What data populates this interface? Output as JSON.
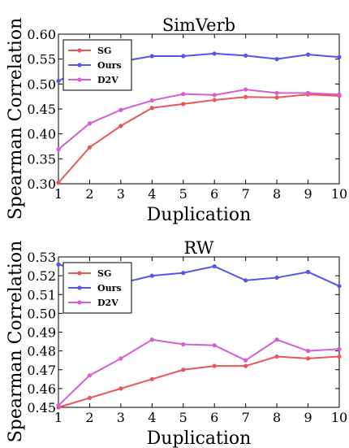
{
  "ylabel": "Spearman Correlation",
  "chart_data": [
    {
      "type": "line",
      "title": "SimVerb",
      "xlabel": "Duplication",
      "x": [
        1,
        2,
        3,
        4,
        5,
        6,
        7,
        8,
        9,
        10
      ],
      "xticks": [
        "1",
        "2",
        "3",
        "4",
        "5",
        "6",
        "7",
        "8",
        "9",
        "10"
      ],
      "ylim": [
        0.3,
        0.6
      ],
      "yticks": [
        "0.30",
        "0.35",
        "0.40",
        "0.45",
        "0.50",
        "0.55",
        "0.60"
      ],
      "legend_position": "top-left",
      "series": [
        {
          "name": "SG",
          "color": "#e8575c",
          "values": [
            0.302,
            0.373,
            0.416,
            0.452,
            0.46,
            0.468,
            0.474,
            0.473,
            0.479,
            0.476
          ]
        },
        {
          "name": "Ours",
          "color": "#5555ee",
          "values": [
            0.506,
            0.538,
            0.545,
            0.556,
            0.556,
            0.561,
            0.557,
            0.55,
            0.559,
            0.554
          ]
        },
        {
          "name": "D2V",
          "color": "#d45ed4",
          "values": [
            0.369,
            0.421,
            0.448,
            0.467,
            0.48,
            0.478,
            0.489,
            0.482,
            0.482,
            0.479
          ]
        }
      ]
    },
    {
      "type": "line",
      "title": "RW",
      "xlabel": "Duplication",
      "x": [
        1,
        2,
        3,
        4,
        5,
        6,
        7,
        8,
        9,
        10
      ],
      "xticks": [
        "1",
        "2",
        "3",
        "4",
        "5",
        "6",
        "7",
        "8",
        "9",
        "10"
      ],
      "ylim": [
        0.45,
        0.53
      ],
      "yticks": [
        "0.45",
        "0.46",
        "0.47",
        "0.48",
        "0.49",
        "0.50",
        "0.51",
        "0.52",
        "0.53"
      ],
      "legend_position": "top-left",
      "series": [
        {
          "name": "SG",
          "color": "#e8575c",
          "values": [
            0.45,
            0.455,
            0.46,
            0.465,
            0.47,
            0.472,
            0.472,
            0.477,
            0.476,
            0.477
          ]
        },
        {
          "name": "Ours",
          "color": "#5555ee",
          "values": [
            0.526,
            0.522,
            0.516,
            0.52,
            0.5215,
            0.525,
            0.5175,
            0.519,
            0.522,
            0.5145
          ]
        },
        {
          "name": "D2V",
          "color": "#d45ed4",
          "values": [
            0.451,
            0.467,
            0.476,
            0.486,
            0.4835,
            0.483,
            0.475,
            0.486,
            0.48,
            0.481
          ]
        }
      ]
    }
  ]
}
